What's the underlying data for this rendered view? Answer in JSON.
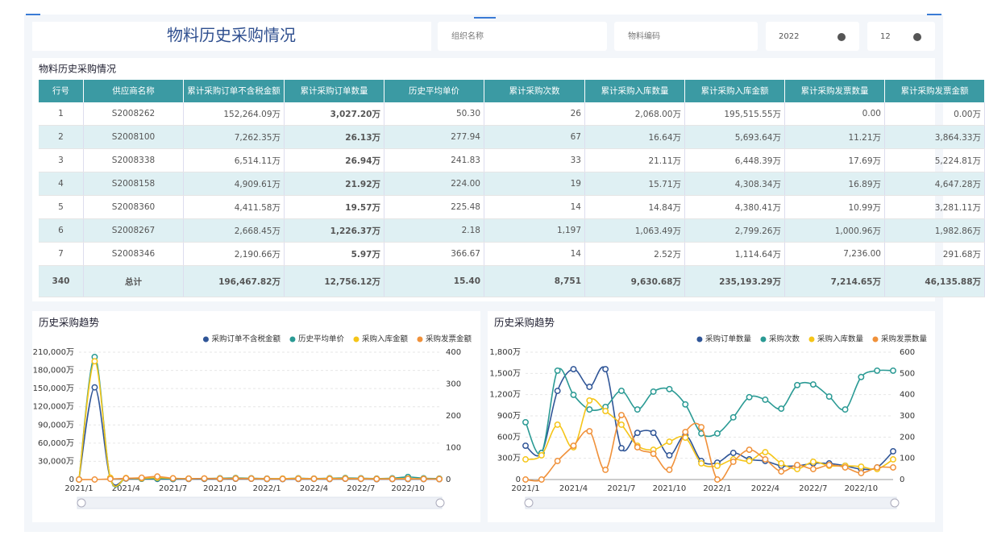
{
  "header": {
    "title": "物料历史采购情况"
  },
  "filters": [
    {
      "placeholder": "组织名称"
    },
    {
      "placeholder": "物料编码"
    },
    {
      "value": "2022"
    },
    {
      "value": "12"
    }
  ],
  "table": {
    "title": "物料历史采购情况",
    "columns": [
      "行号",
      "供应商名称",
      "累计采购订单不含税金额",
      "累计采购订单数量",
      "历史平均单价",
      "累计采购次数",
      "累计采购入库数量",
      "累计采购入库金额",
      "累计采购发票数量",
      "累计采购发票金额"
    ],
    "rows": [
      [
        "1",
        "S2008262",
        "152,264.09万",
        "3,027.20万",
        "50.30",
        "26",
        "2,068.00万",
        "195,515.55万",
        "0.00",
        "0.00万"
      ],
      [
        "2",
        "S2008100",
        "7,262.35万",
        "26.13万",
        "277.94",
        "67",
        "16.64万",
        "5,693.64万",
        "11.21万",
        "3,864.33万"
      ],
      [
        "3",
        "S2008338",
        "6,514.11万",
        "26.94万",
        "241.83",
        "33",
        "21.11万",
        "6,448.39万",
        "17.69万",
        "5,224.81万"
      ],
      [
        "4",
        "S2008158",
        "4,909.61万",
        "21.92万",
        "224.00",
        "19",
        "15.71万",
        "4,308.34万",
        "16.89万",
        "4,647.28万"
      ],
      [
        "5",
        "S2008360",
        "4,411.58万",
        "19.57万",
        "225.48",
        "14",
        "14.84万",
        "4,380.41万",
        "10.99万",
        "3,281.11万"
      ],
      [
        "6",
        "S2008267",
        "2,668.45万",
        "1,226.37万",
        "2.18",
        "1,197",
        "1,063.49万",
        "2,799.26万",
        "1,000.96万",
        "1,982.86万"
      ],
      [
        "7",
        "S2008346",
        "2,190.66万",
        "5.97万",
        "366.67",
        "14",
        "2.52万",
        "1,114.64万",
        "7,236.00",
        "291.68万"
      ]
    ],
    "total": [
      "340",
      "总计",
      "196,467.82万",
      "12,756.12万",
      "15.40",
      "8,751",
      "9,630.68万",
      "235,193.29万",
      "7,214.65万",
      "46,135.88万"
    ]
  },
  "chart_data": [
    {
      "type": "line",
      "title": "历史采购趋势",
      "categories": [
        "2021/1",
        null,
        null,
        "2021/4",
        null,
        null,
        "2021/7",
        null,
        null,
        "2021/10",
        null,
        null,
        "2022/1",
        null,
        null,
        "2022/4",
        null,
        null,
        "2022/7",
        null,
        null,
        "2022/10",
        null,
        null
      ],
      "ylim": [
        0,
        210000
      ],
      "yticks": [
        0,
        {
          "value": 30000,
          "label": "30,000万"
        },
        {
          "value": 60000,
          "label": "60,000万"
        },
        {
          "value": 90000,
          "label": "90,000万"
        },
        {
          "value": 120000,
          "label": "120,000万"
        },
        {
          "value": 150000,
          "label": "150,000万"
        },
        {
          "value": 180000,
          "label": "180,000万"
        },
        {
          "value": 210000,
          "label": "210,000万"
        }
      ],
      "y2lim": [
        0,
        400
      ],
      "y2ticks": [
        0,
        100,
        200,
        300,
        400
      ],
      "grid": true,
      "series": [
        {
          "name": "采购订单不含税金额",
          "color": "#2f5597",
          "values": [
            0,
            152000,
            2000,
            1500,
            1200,
            1000,
            800,
            900,
            1000,
            900,
            1200,
            1300,
            800,
            700,
            900,
            1000,
            800,
            1200,
            1000,
            600,
            700,
            800,
            700,
            600
          ]
        },
        {
          "name": "历史平均单价",
          "color": "#2a9a94",
          "axis": "y2",
          "values": [
            0,
            385,
            5,
            4,
            3,
            3,
            2,
            3,
            3,
            4,
            5,
            4,
            3,
            3,
            4,
            3,
            4,
            5,
            4,
            3,
            4,
            8,
            4,
            3
          ]
        },
        {
          "name": "采购入库金额",
          "color": "#f5c518",
          "values": [
            0,
            195000,
            3000,
            2500,
            2000,
            3000,
            2000,
            1500,
            1800,
            1600,
            2000,
            1800,
            1200,
            1500,
            1700,
            1400,
            1600,
            1900,
            1500,
            1200,
            1300,
            1500,
            1200,
            1000
          ]
        },
        {
          "name": "采购发票金额",
          "color": "#f0913a",
          "values": [
            0,
            0,
            1000,
            2000,
            3000,
            5000,
            2000,
            1500,
            1800,
            1400,
            1600,
            1500,
            1200,
            1000,
            1300,
            1200,
            1100,
            1400,
            1200,
            900,
            1000,
            1200,
            900,
            800
          ]
        }
      ]
    },
    {
      "type": "line",
      "title": "历史采购趋势",
      "categories": [
        "2021/1",
        null,
        null,
        "2021/4",
        null,
        null,
        "2021/7",
        null,
        null,
        "2021/10",
        null,
        null,
        "2022/1",
        null,
        null,
        "2022/4",
        null,
        null,
        "2022/7",
        null,
        null,
        "2022/10",
        null,
        null
      ],
      "ylim": [
        0,
        1800
      ],
      "yticks": [
        0,
        {
          "value": 300,
          "label": "300万"
        },
        {
          "value": 600,
          "label": "600万"
        },
        {
          "value": 900,
          "label": "900万"
        },
        {
          "value": 1200,
          "label": "1,200万"
        },
        {
          "value": 1500,
          "label": "1,500万"
        },
        {
          "value": 1800,
          "label": "1,800万"
        }
      ],
      "y2lim": [
        0,
        600
      ],
      "y2ticks": [
        0,
        100,
        200,
        300,
        400,
        500,
        600
      ],
      "grid": true,
      "series": [
        {
          "name": "采购订单数量",
          "color": "#2f5597",
          "values": [
            478,
            376,
            1253,
            1560,
            1310,
            1560,
            444,
            660,
            660,
            342,
            626,
            262,
            239,
            376,
            285,
            262,
            194,
            194,
            228,
            228,
            194,
            148,
            171,
            399
          ]
        },
        {
          "name": "采购次数",
          "color": "#2a9a94",
          "axis": "y2",
          "values": [
            270,
            125,
            513,
            399,
            330,
            342,
            418,
            330,
            414,
            426,
            354,
            217,
            217,
            293,
            388,
            376,
            334,
            445,
            448,
            391,
            330,
            483,
            513,
            513
          ]
        },
        {
          "name": "采购入库数量",
          "color": "#f5c518",
          "values": [
            285,
            342,
            775,
            456,
            1117,
            968,
            775,
            478,
            421,
            535,
            592,
            228,
            194,
            285,
            262,
            387,
            228,
            148,
            251,
            194,
            194,
            182,
            148,
            285
          ]
        },
        {
          "name": "采购发票数量",
          "color": "#f0913a",
          "values": [
            0,
            0,
            262,
            478,
            683,
            137,
            911,
            456,
            364,
            137,
            672,
            740,
            0,
            251,
            421,
            285,
            114,
            205,
            148,
            205,
            171,
            91,
            171,
            171
          ]
        }
      ]
    }
  ]
}
